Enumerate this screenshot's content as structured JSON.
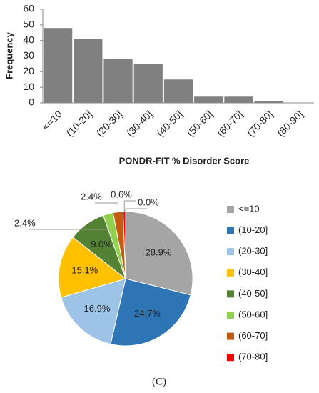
{
  "chart_data": [
    {
      "type": "bar",
      "y_label": "Frequency",
      "x_label": "PONDR-FIT % Disorder Score",
      "categories": [
        "<=10",
        "(10-20]",
        "(20-30]",
        "(30-40]",
        "(40-50]",
        "(50-60]",
        "(60-70]",
        "(70-80]",
        "(80-90]"
      ],
      "values": [
        48,
        41,
        28,
        25,
        15,
        4,
        4,
        1,
        0
      ],
      "color": "#808080",
      "ylim": [
        0,
        60
      ],
      "yticks": [
        0,
        10,
        20,
        30,
        40,
        50,
        60
      ],
      "grid": false
    },
    {
      "type": "pie",
      "categories": [
        "<=10",
        "(10-20]",
        "(20-30]",
        "(30-40]",
        "(40-50]",
        "(50-60]",
        "(60-70]",
        "(70-80]",
        null
      ],
      "values": [
        28.9,
        24.7,
        16.9,
        15.1,
        9.0,
        2.4,
        2.4,
        0.6,
        0.0
      ],
      "value_labels": [
        "28.9%",
        "24.7%",
        "16.9%",
        "15.1%",
        "9.0%",
        "2.4%",
        "2.4%",
        "0.6%",
        "0.0%"
      ],
      "colors": [
        "#a5a5a5",
        "#2e75b6",
        "#9dc3e6",
        "#ffc000",
        "#548235",
        "#92d050",
        "#c55a11",
        "#ff0000",
        "#c00000"
      ],
      "legend": "right"
    }
  ],
  "caption": "(C)"
}
